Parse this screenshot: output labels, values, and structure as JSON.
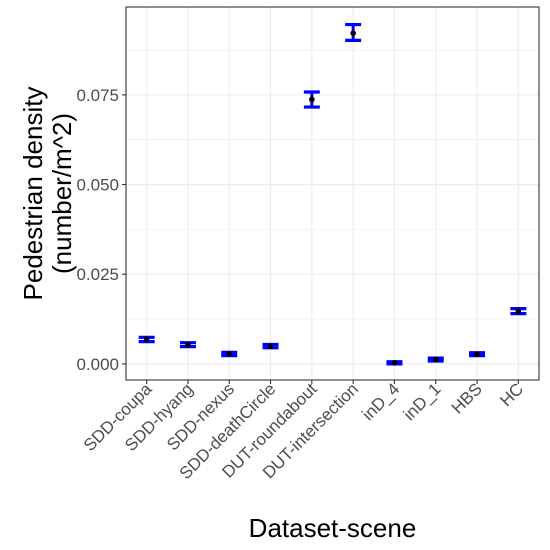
{
  "chart_data": {
    "type": "errorbar",
    "xlabel": "Dataset-scene",
    "ylabel": [
      "Pedestrian density",
      "(number/m^2)"
    ],
    "categories": [
      "SDD-coupa",
      "SDD-hyang",
      "SDD-nexus",
      "SDD-deathCircle",
      "DUT-roundabout",
      "DUT-intersection",
      "inD_4",
      "inD_1",
      "HBS",
      "HC"
    ],
    "values": [
      0.0068,
      0.0053,
      0.0028,
      0.0049,
      0.0737,
      0.0922,
      0.0003,
      0.0012,
      0.0027,
      0.0147
    ],
    "error_low": [
      0.0062,
      0.0048,
      0.0023,
      0.0045,
      0.0716,
      0.0902,
      0.0,
      0.0008,
      0.0023,
      0.014
    ],
    "error_high": [
      0.0074,
      0.0059,
      0.0032,
      0.0054,
      0.0758,
      0.0946,
      0.0006,
      0.0016,
      0.0031,
      0.0154
    ],
    "ylim": [
      -0.0045,
      0.0995
    ],
    "yticks": [
      0.0,
      0.025,
      0.05,
      0.075
    ],
    "ytick_labels": [
      "0.000",
      "0.025",
      "0.050",
      "0.075"
    ],
    "grid": true,
    "colors": {
      "errorbar": "#0000ff",
      "point": "#000000",
      "grid": "#ebebeb",
      "panel_border": "#333333"
    }
  }
}
